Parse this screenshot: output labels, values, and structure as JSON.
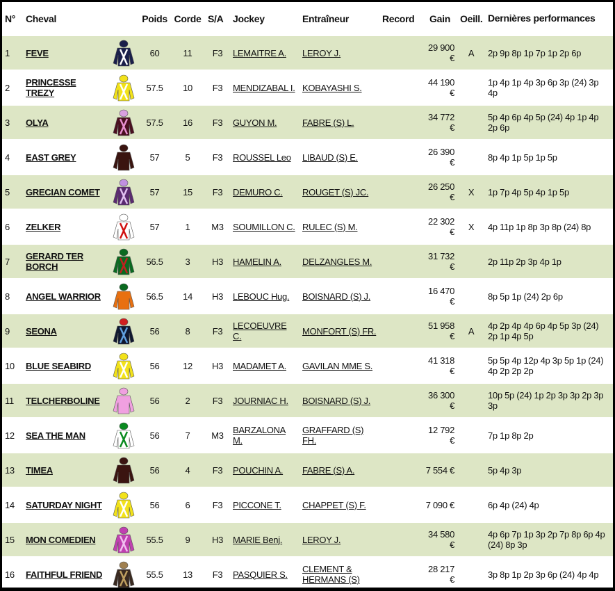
{
  "headers": {
    "num": "N°",
    "horse": "Cheval",
    "weight": "Poids",
    "rope": "Corde",
    "sa": "S/A",
    "jockey": "Jockey",
    "trainer": "Entraîneur",
    "record": "Record",
    "gain": "Gain",
    "blinkers": "Oeill.",
    "perf": "Dernières performances"
  },
  "rows": [
    {
      "num": "1",
      "horse": "FEVE",
      "silk": {
        "body": "#1a1f4a",
        "cap": "#1a1f4a",
        "accent": "#ffffff"
      },
      "weight": "60",
      "rope": "11",
      "sa": "F3",
      "jockey": "LEMAITRE A.",
      "trainer": "LEROY J.",
      "record": "",
      "gain": "29 900 €",
      "blinkers": "A",
      "perf": "2p 9p 8p 1p 7p 1p 2p 6p"
    },
    {
      "num": "2",
      "horse": "PRINCESSE TREZY",
      "silk": {
        "body": "#f2e21a",
        "cap": "#f2e21a",
        "accent": "#ffffff"
      },
      "weight": "57.5",
      "rope": "10",
      "sa": "F3",
      "jockey": "MENDIZABAL I.",
      "trainer": "KOBAYASHI S.",
      "record": "",
      "gain": "44 190 €",
      "blinkers": "",
      "perf": "1p 4p 1p 4p 3p 6p 3p (24) 3p 4p"
    },
    {
      "num": "3",
      "horse": "OLYA",
      "silk": {
        "body": "#4a1020",
        "cap": "#d9a0e0",
        "accent": "#e890d0"
      },
      "weight": "57.5",
      "rope": "16",
      "sa": "F3",
      "jockey": "GUYON M.",
      "trainer": "FABRE (S) L.",
      "record": "",
      "gain": "34 772 €",
      "blinkers": "",
      "perf": "5p 4p 6p 4p 5p (24) 4p 1p 4p 2p 6p"
    },
    {
      "num": "4",
      "horse": "EAST GREY",
      "silk": {
        "body": "#3a1410",
        "cap": "#3a1410",
        "accent": "#3a1410"
      },
      "weight": "57",
      "rope": "5",
      "sa": "F3",
      "jockey": "ROUSSEL Leo",
      "trainer": "LIBAUD (S) E.",
      "record": "",
      "gain": "26 390 €",
      "blinkers": "",
      "perf": "8p 4p 1p 5p 1p 5p"
    },
    {
      "num": "5",
      "horse": "GRECIAN COMET",
      "silk": {
        "body": "#5a2a70",
        "cap": "#c090e0",
        "accent": "#e0c0f0"
      },
      "weight": "57",
      "rope": "15",
      "sa": "F3",
      "jockey": "DEMURO C.",
      "trainer": "ROUGET (S) JC.",
      "record": "",
      "gain": "26 250 €",
      "blinkers": "X",
      "perf": "1p 7p 4p 5p 4p 1p 5p"
    },
    {
      "num": "6",
      "horse": "ZELKER",
      "silk": {
        "body": "#ffffff",
        "cap": "#ffffff",
        "accent": "#d01010"
      },
      "weight": "57",
      "rope": "1",
      "sa": "M3",
      "jockey": "SOUMILLON C.",
      "trainer": "RULEC (S) M.",
      "record": "",
      "gain": "22 302 €",
      "blinkers": "X",
      "perf": "4p 11p 1p 8p 3p 8p (24) 8p"
    },
    {
      "num": "7",
      "horse": "GERARD TER BORCH",
      "silk": {
        "body": "#0a6a20",
        "cap": "#0a6a20",
        "accent": "#c02020"
      },
      "weight": "56.5",
      "rope": "3",
      "sa": "H3",
      "jockey": "HAMELIN A.",
      "trainer": "DELZANGLES M.",
      "record": "",
      "gain": "31 732 €",
      "blinkers": "",
      "perf": "2p 11p 2p 3p 4p 1p"
    },
    {
      "num": "8",
      "horse": "ANGEL WARRIOR",
      "silk": {
        "body": "#e87010",
        "cap": "#0a6a20",
        "accent": "#e87010"
      },
      "weight": "56.5",
      "rope": "14",
      "sa": "H3",
      "jockey": "LEBOUC Hug.",
      "trainer": "BOISNARD (S) J.",
      "record": "",
      "gain": "16 470 €",
      "blinkers": "",
      "perf": "8p 5p 1p (24) 2p 6p"
    },
    {
      "num": "9",
      "horse": "SEONA",
      "silk": {
        "body": "#101830",
        "cap": "#d02020",
        "accent": "#60a0e0"
      },
      "weight": "56",
      "rope": "8",
      "sa": "F3",
      "jockey": "LECOEUVRE C.",
      "trainer": "MONFORT (S) FR.",
      "record": "",
      "gain": "51 958 €",
      "blinkers": "A",
      "perf": "4p 2p 4p 4p 6p 4p 5p 3p (24) 2p 1p 4p 5p"
    },
    {
      "num": "10",
      "horse": "BLUE SEABIRD",
      "silk": {
        "body": "#f2e21a",
        "cap": "#f2e21a",
        "accent": "#ffffff"
      },
      "weight": "56",
      "rope": "12",
      "sa": "H3",
      "jockey": "MADAMET A.",
      "trainer": "GAVILAN MME S.",
      "record": "",
      "gain": "41 318 €",
      "blinkers": "",
      "perf": "5p 5p 4p 12p 4p 3p 5p 1p (24) 4p 2p 2p 2p"
    },
    {
      "num": "11",
      "horse": "TELCHERBOLINE",
      "silk": {
        "body": "#f0a0e0",
        "cap": "#f0a0e0",
        "accent": "#f0a0e0"
      },
      "weight": "56",
      "rope": "2",
      "sa": "F3",
      "jockey": "JOURNIAC H.",
      "trainer": "BOISNARD (S) J.",
      "record": "",
      "gain": "36 300 €",
      "blinkers": "",
      "perf": "10p 5p (24) 1p 2p 3p 3p 2p 3p 3p"
    },
    {
      "num": "12",
      "horse": "SEA THE MAN",
      "silk": {
        "body": "#ffffff",
        "cap": "#0a8a20",
        "accent": "#0a8a20"
      },
      "weight": "56",
      "rope": "7",
      "sa": "M3",
      "jockey": "BARZALONA M.",
      "trainer": "GRAFFARD (S) FH.",
      "record": "",
      "gain": "12 792 €",
      "blinkers": "",
      "perf": "7p 1p 8p 2p"
    },
    {
      "num": "13",
      "horse": "TIMEA",
      "silk": {
        "body": "#3a1410",
        "cap": "#3a1410",
        "accent": "#3a1410"
      },
      "weight": "56",
      "rope": "4",
      "sa": "F3",
      "jockey": "POUCHIN A.",
      "trainer": "FABRE (S) A.",
      "record": "",
      "gain": "7 554 €",
      "blinkers": "",
      "perf": "5p 4p 3p"
    },
    {
      "num": "14",
      "horse": "SATURDAY NIGHT",
      "silk": {
        "body": "#f2e21a",
        "cap": "#f2e21a",
        "accent": "#ffffff"
      },
      "weight": "56",
      "rope": "6",
      "sa": "F3",
      "jockey": "PICCONE T.",
      "trainer": "CHAPPET (S) F.",
      "record": "",
      "gain": "7 090 €",
      "blinkers": "",
      "perf": "6p 4p (24) 4p"
    },
    {
      "num": "15",
      "horse": "MON COMEDIEN",
      "silk": {
        "body": "#c040b0",
        "cap": "#c040b0",
        "accent": "#f0c0f0"
      },
      "weight": "55.5",
      "rope": "9",
      "sa": "H3",
      "jockey": "MARIE Benj.",
      "trainer": "LEROY J.",
      "record": "",
      "gain": "34 580 €",
      "blinkers": "",
      "perf": "4p 6p 7p 1p 3p 2p 7p 8p 6p 4p (24) 8p 3p"
    },
    {
      "num": "16",
      "horse": "FAITHFUL FRIEND",
      "silk": {
        "body": "#3a2a20",
        "cap": "#a08050",
        "accent": "#c0a060"
      },
      "weight": "55.5",
      "rope": "13",
      "sa": "F3",
      "jockey": "PASQUIER S.",
      "trainer": "CLEMENT & HERMANS (S)",
      "record": "",
      "gain": "28 217 €",
      "blinkers": "",
      "perf": "3p 8p 1p 2p 3p 6p (24) 4p 4p"
    }
  ]
}
